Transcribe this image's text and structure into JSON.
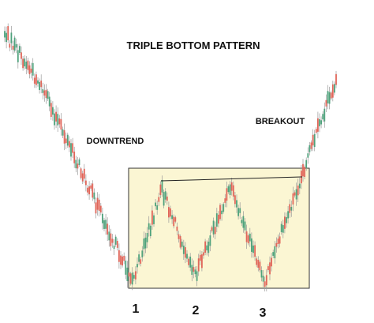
{
  "title": "TRIPLE BOTTOM PATTERN",
  "labels": {
    "downtrend": "DOWNTREND",
    "breakout": "BREAKOUT"
  },
  "bottoms": [
    "1",
    "2",
    "3"
  ]
}
